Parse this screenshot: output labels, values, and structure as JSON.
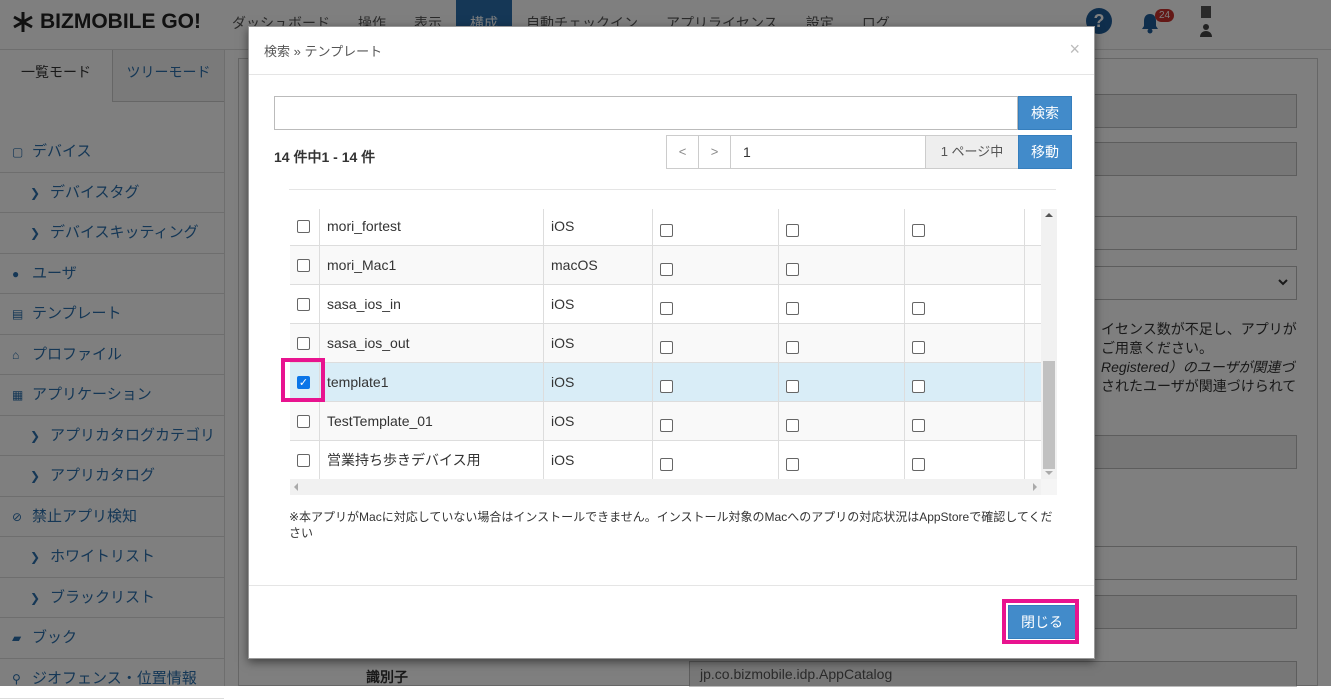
{
  "app": {
    "logo": "BIZMOBILE GO!",
    "nav": [
      "ダッシュボード",
      "操作",
      "表示",
      "構成",
      "自動チェックイン",
      "アプリライセンス",
      "設定",
      "ログ"
    ],
    "active_nav": "構成",
    "notification_count": "24"
  },
  "sidebar": {
    "tabs": [
      "一覧モード",
      "ツリーモード"
    ],
    "items": [
      {
        "label": "デバイス",
        "icon": "square-icon",
        "sub": false
      },
      {
        "label": "デバイスタグ",
        "icon": "chevron-right-icon",
        "sub": true
      },
      {
        "label": "デバイスキッティング",
        "icon": "chevron-right-icon",
        "sub": true
      },
      {
        "label": "ユーザ",
        "icon": "user-icon",
        "sub": false
      },
      {
        "label": "テンプレート",
        "icon": "file-icon",
        "sub": false
      },
      {
        "label": "プロファイル",
        "icon": "inbox-icon",
        "sub": false
      },
      {
        "label": "アプリケーション",
        "icon": "grid-icon",
        "sub": false
      },
      {
        "label": "アプリカタログカテゴリ",
        "icon": "chevron-right-icon",
        "sub": true
      },
      {
        "label": "アプリカタログ",
        "icon": "chevron-right-icon",
        "sub": true
      },
      {
        "label": "禁止アプリ検知",
        "icon": "ban-icon",
        "sub": false
      },
      {
        "label": "ホワイトリスト",
        "icon": "chevron-right-icon",
        "sub": true
      },
      {
        "label": "ブラックリスト",
        "icon": "chevron-right-icon",
        "sub": true
      },
      {
        "label": "ブック",
        "icon": "book-icon",
        "sub": false
      },
      {
        "label": "ジオフェンス・位置情報",
        "icon": "map-marker-icon",
        "sub": false
      }
    ]
  },
  "background": {
    "text_lines": [
      "イセンス数が不足し、アプリが",
      "ご用意ください。",
      "Registered）のユーザが関連づ",
      "されたユーザが関連づけられて"
    ],
    "identifier_label": "識別子",
    "identifier_value": "jp.co.bizmobile.idp.AppCatalog"
  },
  "modal": {
    "title": "検索 » テンプレート",
    "search_value": "",
    "search_button": "検索",
    "count_text": "14 件中1 - 14 件",
    "prev": "<",
    "next": ">",
    "page_value": "1",
    "page_total": "1 ページ中",
    "go_button": "移動",
    "rows": [
      {
        "name": "mori_fortest",
        "os": "iOS",
        "checked": false,
        "cols": [
          true,
          true,
          true
        ]
      },
      {
        "name": "mori_Mac1",
        "os": "macOS",
        "checked": false,
        "cols": [
          true,
          true,
          false
        ]
      },
      {
        "name": "sasa_ios_in",
        "os": "iOS",
        "checked": false,
        "cols": [
          true,
          true,
          true
        ]
      },
      {
        "name": "sasa_ios_out",
        "os": "iOS",
        "checked": false,
        "cols": [
          true,
          true,
          true
        ]
      },
      {
        "name": "template1",
        "os": "iOS",
        "checked": true,
        "cols": [
          true,
          true,
          true
        ]
      },
      {
        "name": "TestTemplate_01",
        "os": "iOS",
        "checked": false,
        "cols": [
          true,
          true,
          true
        ]
      },
      {
        "name": "営業持ち歩きデバイス用",
        "os": "iOS",
        "checked": false,
        "cols": [
          true,
          true,
          true
        ]
      }
    ],
    "note": "※本アプリがMacに対応していない場合はインストールできません。インストール対象のMacへのアプリの対応状況はAppStoreで確認してください",
    "close_button": "閉じる"
  },
  "colors": {
    "primary": "#428bca",
    "highlight": "#e8138f",
    "selected_row": "#d9edf7"
  }
}
